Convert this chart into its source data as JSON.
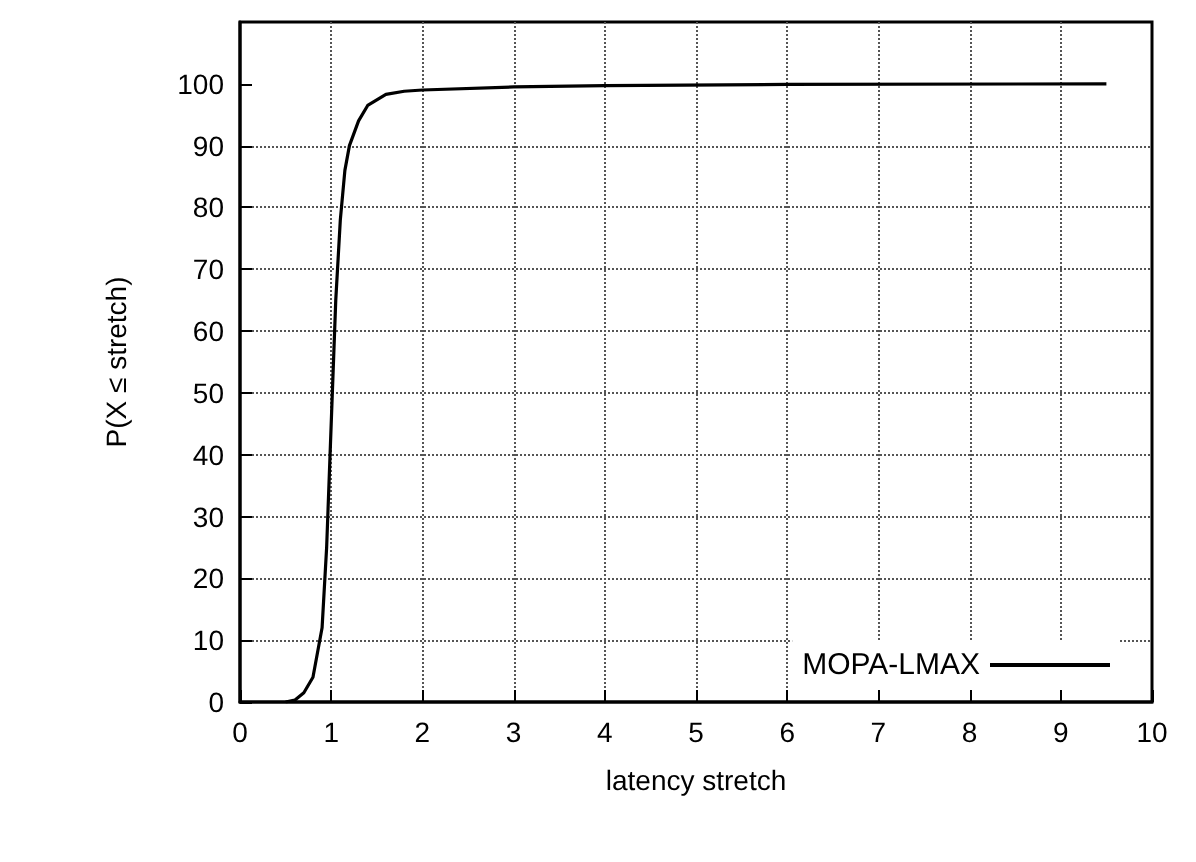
{
  "chart_data": {
    "type": "line",
    "xlabel": "latency stretch",
    "ylabel": "P(X ≤ stretch)",
    "series": [
      {
        "name": "MOPA-LMAX",
        "color": "#000000",
        "x": [
          0.5,
          0.6,
          0.7,
          0.8,
          0.9,
          0.95,
          1.0,
          1.05,
          1.1,
          1.15,
          1.2,
          1.3,
          1.4,
          1.6,
          1.8,
          2,
          3,
          4,
          6,
          9.5
        ],
        "values": [
          0,
          0.3,
          1.5,
          4,
          12,
          25,
          45,
          65,
          78,
          86,
          90,
          94,
          96.5,
          98.3,
          98.8,
          99,
          99.5,
          99.7,
          99.9,
          100
        ]
      }
    ],
    "xlim": [
      0,
      10
    ],
    "xticks": [
      0,
      1,
      2,
      3,
      4,
      5,
      6,
      7,
      8,
      9,
      10
    ],
    "ylim": [
      0,
      110
    ],
    "yticks": [
      0,
      10,
      20,
      30,
      40,
      50,
      60,
      70,
      80,
      90,
      100
    ],
    "grid": true,
    "legend": "bottom right",
    "marker": "none",
    "line_style": "solid"
  }
}
